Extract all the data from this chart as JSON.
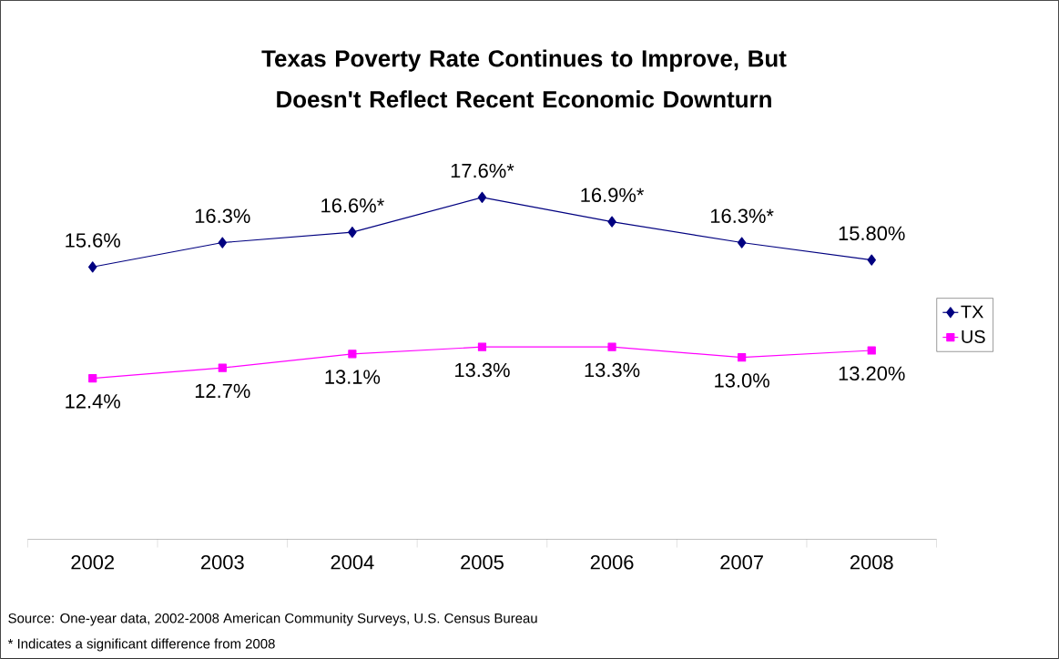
{
  "chart_data": {
    "type": "line",
    "title": "Texas Poverty Rate Continues to Improve, But Doesn't Reflect Recent Economic Downturn",
    "categories": [
      "2002",
      "2003",
      "2004",
      "2005",
      "2006",
      "2007",
      "2008"
    ],
    "series": [
      {
        "name": "TX",
        "color": "#000080",
        "marker": "diamond",
        "values": [
          15.6,
          16.3,
          16.6,
          17.6,
          16.9,
          16.3,
          15.8
        ],
        "value_labels": [
          "15.6%",
          "16.3%",
          "16.6%*",
          "17.6%*",
          "16.9%*",
          "16.3%*",
          "15.80%"
        ]
      },
      {
        "name": "US",
        "color": "#ff00ff",
        "marker": "square",
        "values": [
          12.4,
          12.7,
          13.1,
          13.3,
          13.3,
          13.0,
          13.2
        ],
        "value_labels": [
          "12.4%",
          "12.7%",
          "13.1%",
          "13.3%",
          "13.3%",
          "13.0%",
          "13.20%"
        ]
      }
    ],
    "tick_labels": "x",
    "legend": "right",
    "line_style": "solid",
    "annotations": [
      "Source: One-year data, 2002-2008 American Community Surveys, U.S. Census Bureau",
      "* Indicates a significant difference from 2008"
    ]
  }
}
